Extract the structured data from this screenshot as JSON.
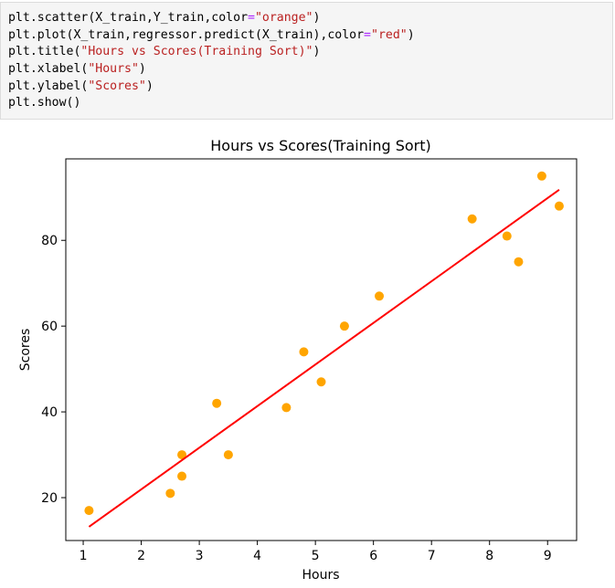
{
  "code_cell": {
    "lines": [
      [
        {
          "t": "plt.scatter(X_train,Y_train,color"
        },
        {
          "t": "=",
          "c": "op"
        },
        {
          "t": "\"orange\"",
          "c": "str"
        },
        {
          "t": ")"
        }
      ],
      [
        {
          "t": "plt.plot(X_train,regressor.predict(X_train),color"
        },
        {
          "t": "=",
          "c": "op"
        },
        {
          "t": "\"red\"",
          "c": "str"
        },
        {
          "t": ")"
        }
      ],
      [
        {
          "t": "plt.title("
        },
        {
          "t": "\"Hours vs Scores(Training Sort)\"",
          "c": "str"
        },
        {
          "t": ")"
        }
      ],
      [
        {
          "t": "plt.xlabel("
        },
        {
          "t": "\"Hours\"",
          "c": "str"
        },
        {
          "t": ")"
        }
      ],
      [
        {
          "t": "plt.ylabel("
        },
        {
          "t": "\"Scores\"",
          "c": "str"
        },
        {
          "t": ")"
        }
      ],
      [
        {
          "t": "plt.show()"
        }
      ]
    ]
  },
  "chart_data": {
    "type": "scatter",
    "title": "Hours vs Scores(Training Sort)",
    "xlabel": "Hours",
    "ylabel": "Scores",
    "xlim": [
      0.7,
      9.5
    ],
    "ylim": [
      10,
      99
    ],
    "xticks": [
      1,
      2,
      3,
      4,
      5,
      6,
      7,
      8,
      9
    ],
    "yticks": [
      20,
      40,
      60,
      80
    ],
    "grid": false,
    "series": [
      {
        "kind": "scatter",
        "color": "#ffa500",
        "points": [
          {
            "x": 1.1,
            "y": 17
          },
          {
            "x": 2.5,
            "y": 21
          },
          {
            "x": 2.7,
            "y": 25
          },
          {
            "x": 2.7,
            "y": 30
          },
          {
            "x": 3.3,
            "y": 42
          },
          {
            "x": 3.5,
            "y": 30
          },
          {
            "x": 4.5,
            "y": 41
          },
          {
            "x": 4.8,
            "y": 54
          },
          {
            "x": 5.1,
            "y": 47
          },
          {
            "x": 5.5,
            "y": 60
          },
          {
            "x": 6.1,
            "y": 67
          },
          {
            "x": 7.7,
            "y": 85
          },
          {
            "x": 8.3,
            "y": 81
          },
          {
            "x": 8.5,
            "y": 75
          },
          {
            "x": 8.9,
            "y": 95
          },
          {
            "x": 9.2,
            "y": 88
          }
        ]
      },
      {
        "kind": "line",
        "color": "#ff0000",
        "points": [
          {
            "x": 1.1,
            "y": 13.2
          },
          {
            "x": 9.2,
            "y": 91.8
          }
        ]
      }
    ]
  }
}
